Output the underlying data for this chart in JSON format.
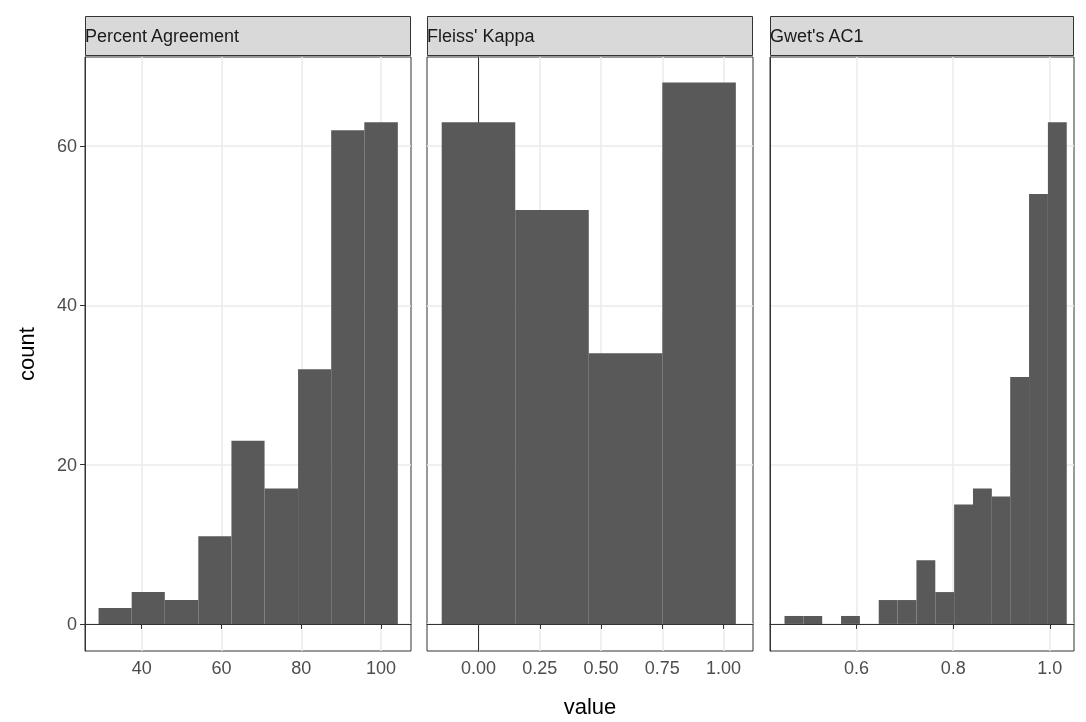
{
  "chart_data": [
    {
      "type": "histogram",
      "title": "Percent Agreement",
      "ylabel": "count",
      "color": "#595959",
      "bins": [
        29.2,
        37.5,
        45.8,
        54.2,
        62.5,
        70.8,
        79.2,
        87.5,
        95.8,
        104.2
      ],
      "values": [
        2,
        4,
        3,
        11,
        23,
        17,
        32,
        62,
        63
      ],
      "xlim": [
        25.8,
        107.5
      ],
      "xticks": [
        40,
        60,
        80,
        100
      ],
      "ylim": [
        -3.4,
        71.2
      ],
      "yticks": [
        0,
        20,
        40,
        60
      ],
      "grid": true
    },
    {
      "type": "histogram",
      "title": "Fleiss' Kappa",
      "xlabel": "value",
      "color": "#595959",
      "bins": [
        -0.15,
        0.15,
        0.45,
        0.75,
        1.05
      ],
      "values": [
        63,
        52,
        34,
        68
      ],
      "xlim": [
        -0.21,
        1.12
      ],
      "xticks": [
        {
          "value": 0,
          "label": "0.00"
        },
        0.25,
        {
          "value": 0.5,
          "label": "0.50"
        },
        0.75,
        {
          "value": 1,
          "label": "1.00"
        }
      ],
      "ylim": [
        -3.4,
        71.2
      ],
      "yticks": [
        0,
        20,
        40,
        60
      ],
      "tick_labels": "x",
      "grid": true
    },
    {
      "type": "histogram",
      "title": "Gwet's AC1",
      "color": "#595959",
      "bins": [
        0.451,
        0.49,
        0.529,
        0.568,
        0.607,
        0.646,
        0.685,
        0.724,
        0.763,
        0.802,
        0.841,
        0.88,
        0.918,
        0.957,
        0.996,
        1.035
      ],
      "values": [
        1,
        1,
        0,
        1,
        0,
        3,
        3,
        8,
        4,
        15,
        17,
        16,
        31,
        54,
        63
      ],
      "xlim": [
        0.421,
        1.05
      ],
      "xticks": [
        0.6,
        0.8,
        {
          "value": 1,
          "label": "1.0"
        }
      ],
      "ylim": [
        -3.4,
        71.2
      ],
      "yticks": [
        0,
        20,
        40,
        60
      ],
      "tick_labels": "x",
      "grid": true
    }
  ]
}
